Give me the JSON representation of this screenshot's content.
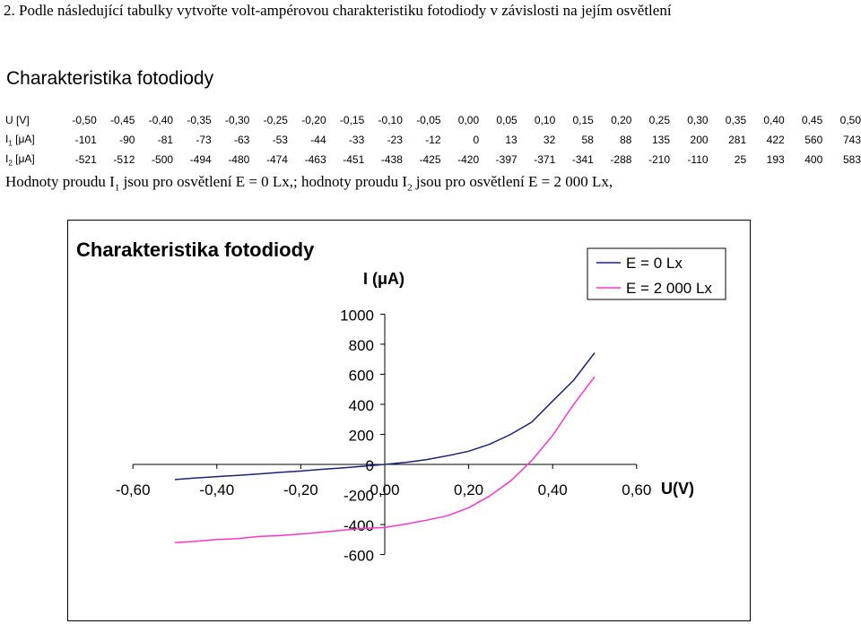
{
  "task_text": "2. Podle následující tabulky vytvořte volt-ampérovou charakteristiku fotodiody v závislosti na jejím osvětlení",
  "table_title": "Charakteristika fotodiody",
  "table": {
    "rows": [
      {
        "label": "U [V]",
        "values": [
          "-0,50",
          "-0,45",
          "-0,40",
          "-0,35",
          "-0,30",
          "-0,25",
          "-0,20",
          "-0,15",
          "-0,10",
          "-0,05",
          "0,00",
          "0,05",
          "0,10",
          "0,15",
          "0,20",
          "0,25",
          "0,30",
          "0,35",
          "0,40",
          "0,45",
          "0,50"
        ]
      },
      {
        "label_main": "I",
        "label_sub": "1",
        "label_rest": " [μA]",
        "values": [
          "-101",
          "-90",
          "-81",
          "-73",
          "-63",
          "-53",
          "-44",
          "-33",
          "-23",
          "-12",
          "0",
          "13",
          "32",
          "58",
          "88",
          "135",
          "200",
          "281",
          "422",
          "560",
          "743"
        ]
      },
      {
        "label_main": "I",
        "label_sub": "2",
        "label_rest": " [μA]",
        "values": [
          "-521",
          "-512",
          "-500",
          "-494",
          "-480",
          "-474",
          "-463",
          "-451",
          "-438",
          "-425",
          "-420",
          "-397",
          "-371",
          "-341",
          "-288",
          "-210",
          "-110",
          "25",
          "193",
          "400",
          "583"
        ]
      }
    ]
  },
  "note": {
    "part1": "Hodnoty proudu I",
    "sub1": "1",
    "part2": " jsou pro osvětlení E = 0 Lx,; hodnoty proudu I",
    "sub2": "2",
    "part3": " jsou pro osvětlení E = 2 000 Lx,"
  },
  "chart_data": {
    "type": "line",
    "title": "Charakteristika fotodiody",
    "xlabel": "U(V)",
    "ylabel": "I (μA)",
    "xlim": [
      -0.6,
      0.6
    ],
    "ylim": [
      -600,
      1000
    ],
    "x_ticks": [
      "-0,60",
      "-0,40",
      "-0,20",
      "0,00",
      "0,20",
      "0,40",
      "0,60"
    ],
    "y_ticks": [
      "1000",
      "800",
      "600",
      "400",
      "200",
      "0",
      "-200",
      "-400",
      "-600"
    ],
    "x_tick_values": [
      -0.6,
      -0.4,
      -0.2,
      0,
      0.2,
      0.4,
      0.6
    ],
    "y_tick_values": [
      1000,
      800,
      600,
      400,
      200,
      0,
      -200,
      -400,
      -600
    ],
    "legend_position": "top-right",
    "grid": false,
    "x": [
      -0.5,
      -0.45,
      -0.4,
      -0.35,
      -0.3,
      -0.25,
      -0.2,
      -0.15,
      -0.1,
      -0.05,
      0,
      0.05,
      0.1,
      0.15,
      0.2,
      0.25,
      0.3,
      0.35,
      0.4,
      0.45,
      0.5
    ],
    "series": [
      {
        "name": "E = 0 Lx",
        "color": "#1a237e",
        "values": [
          -101,
          -90,
          -81,
          -73,
          -63,
          -53,
          -44,
          -33,
          -23,
          -12,
          0,
          13,
          32,
          58,
          88,
          135,
          200,
          281,
          422,
          560,
          743
        ]
      },
      {
        "name": "E = 2 000 Lx",
        "color": "#ff33cc",
        "values": [
          -521,
          -512,
          -500,
          -494,
          -480,
          -474,
          -463,
          -451,
          -438,
          -425,
          -420,
          -397,
          -371,
          -341,
          -288,
          -210,
          -110,
          25,
          193,
          400,
          583
        ]
      }
    ]
  }
}
